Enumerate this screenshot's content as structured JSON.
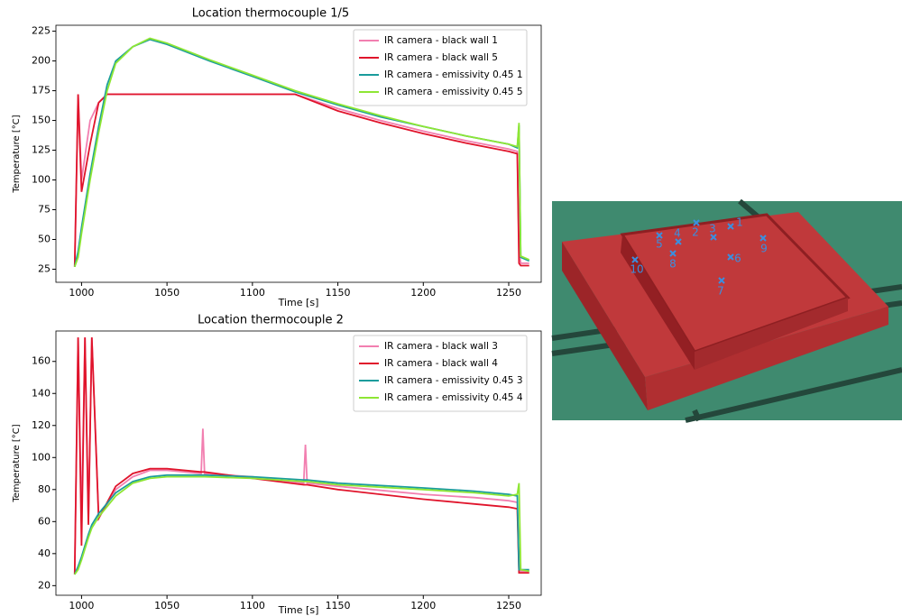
{
  "chart_data": [
    {
      "type": "line",
      "title": "Location thermocouple 1/5",
      "xlabel": "Time [s]",
      "ylabel": "Temperature [°C]",
      "x": [
        996,
        998,
        1000,
        1005,
        1010,
        1015,
        1020,
        1030,
        1040,
        1050,
        1075,
        1100,
        1125,
        1150,
        1175,
        1200,
        1225,
        1250,
        1255,
        1256,
        1257,
        1262
      ],
      "series": [
        {
          "name": "IR camera - black wall 1",
          "color": "#f27fb0",
          "values": [
            27,
            172,
            100,
            150,
            165,
            172,
            172,
            172,
            172,
            172,
            172,
            172,
            172,
            160,
            150,
            141,
            133,
            126,
            124,
            40,
            30,
            30
          ]
        },
        {
          "name": "IR camera - black wall 5",
          "color": "#e0142b",
          "values": [
            27,
            172,
            90,
            130,
            165,
            172,
            172,
            172,
            172,
            172,
            172,
            172,
            172,
            158,
            148,
            139,
            131,
            124,
            122,
            30,
            28,
            28
          ]
        },
        {
          "name": "IR camera - emissivity 0.45 1",
          "color": "#1a9c9c",
          "values": [
            27,
            40,
            60,
            105,
            145,
            180,
            200,
            212,
            218,
            214,
            200,
            187,
            174,
            163,
            153,
            145,
            137,
            130,
            127,
            146,
            35,
            32
          ]
        },
        {
          "name": "IR camera - emissivity 0.45 5",
          "color": "#8ee634",
          "values": [
            27,
            35,
            55,
            100,
            140,
            175,
            198,
            212,
            219,
            215,
            201,
            188,
            175,
            164,
            154,
            145,
            137,
            130,
            128,
            148,
            36,
            33
          ]
        }
      ],
      "xlim": [
        985,
        1269
      ],
      "xticks": [
        1000,
        1050,
        1100,
        1150,
        1200,
        1250
      ],
      "ylim": [
        14,
        230
      ],
      "yticks": [
        25,
        50,
        75,
        100,
        125,
        150,
        175,
        200,
        225
      ],
      "legend": "upper right"
    },
    {
      "type": "line",
      "title": "Location thermocouple 2",
      "xlabel": "Time [s]",
      "ylabel": "Temperature [°C]",
      "x": [
        996,
        998,
        1000,
        1002,
        1004,
        1006,
        1010,
        1020,
        1030,
        1040,
        1050,
        1070,
        1071,
        1072,
        1100,
        1130,
        1131,
        1132,
        1150,
        1200,
        1230,
        1250,
        1255,
        1256,
        1257,
        1262
      ],
      "series": [
        {
          "name": "IR camera - black wall 3",
          "color": "#f27fb0",
          "values": [
            27,
            175,
            60,
            175,
            60,
            175,
            62,
            80,
            88,
            92,
            92,
            90,
            118,
            90,
            88,
            84,
            108,
            84,
            82,
            77,
            75,
            73,
            72,
            30,
            29,
            29
          ]
        },
        {
          "name": "IR camera - black wall 4",
          "color": "#e0142b",
          "values": [
            27,
            175,
            45,
            175,
            58,
            175,
            62,
            82,
            90,
            93,
            93,
            91,
            91,
            91,
            87,
            83,
            83,
            83,
            80,
            74,
            71,
            69,
            68,
            28,
            28,
            28
          ]
        },
        {
          "name": "IR camera - emissivity 0.45 3",
          "color": "#1a9c9c",
          "values": [
            27,
            32,
            38,
            45,
            52,
            58,
            65,
            78,
            85,
            88,
            89,
            89,
            89,
            89,
            88,
            86,
            86,
            86,
            84,
            81,
            79,
            77,
            76,
            30,
            30,
            30
          ]
        },
        {
          "name": "IR camera - emissivity 0.45 4",
          "color": "#8ee634",
          "values": [
            27,
            30,
            36,
            43,
            50,
            56,
            63,
            76,
            84,
            87,
            88,
            88,
            88,
            88,
            87,
            85,
            85,
            85,
            83,
            80,
            78,
            76,
            77,
            84,
            30,
            29
          ]
        }
      ],
      "xlim": [
        985,
        1269
      ],
      "xticks": [
        1000,
        1050,
        1100,
        1150,
        1200,
        1250
      ],
      "ylim": [
        14,
        179
      ],
      "yticks": [
        20,
        40,
        60,
        80,
        100,
        120,
        140,
        160
      ],
      "legend": "upper right"
    }
  ],
  "render": {
    "markers": [
      "1",
      "2",
      "3",
      "4",
      "5",
      "6",
      "7",
      "8",
      "9",
      "10"
    ]
  }
}
